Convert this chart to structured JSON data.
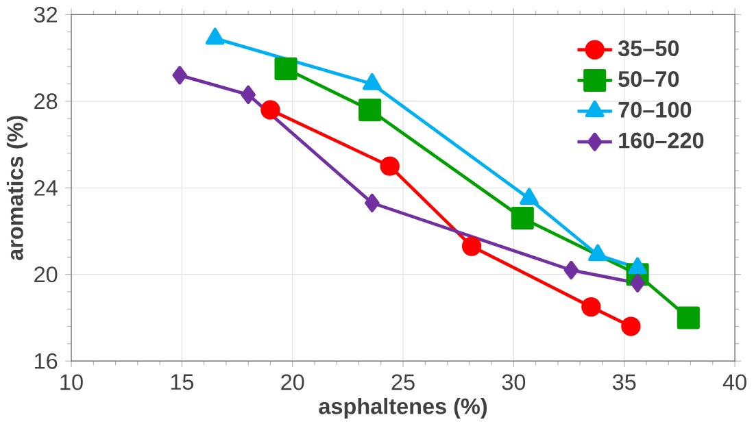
{
  "chart_data": {
    "type": "line",
    "xlabel": "asphaltenes (%)",
    "ylabel": "aromatics (%)",
    "xlim": [
      10,
      40
    ],
    "xticks": [
      10,
      15,
      20,
      25,
      30,
      35,
      40
    ],
    "ylim": [
      16,
      32
    ],
    "yticks": [
      16,
      20,
      24,
      28,
      32
    ],
    "grid": true,
    "legend": "top right",
    "series": [
      {
        "name": "35–50",
        "color": "#ff0000",
        "marker": "circle",
        "x": [
          19.0,
          24.4,
          28.1,
          33.5,
          35.3
        ],
        "values": [
          27.6,
          25.0,
          21.3,
          18.5,
          17.6
        ]
      },
      {
        "name": "50–70",
        "color": "#00a000",
        "marker": "square",
        "x": [
          19.7,
          23.5,
          30.4,
          35.6,
          37.9
        ],
        "values": [
          29.5,
          27.6,
          22.6,
          20.0,
          18.0
        ]
      },
      {
        "name": "70–100",
        "color": "#00b0f0",
        "marker": "triangle",
        "x": [
          16.5,
          23.6,
          30.7,
          33.8,
          35.6
        ],
        "values": [
          30.9,
          28.8,
          23.5,
          20.9,
          20.3
        ]
      },
      {
        "name": "160–220",
        "color": "#7030a0",
        "marker": "diamond",
        "x": [
          14.9,
          18.0,
          23.6,
          32.6,
          35.6
        ],
        "values": [
          29.2,
          28.3,
          23.3,
          20.2,
          19.6
        ]
      }
    ]
  }
}
